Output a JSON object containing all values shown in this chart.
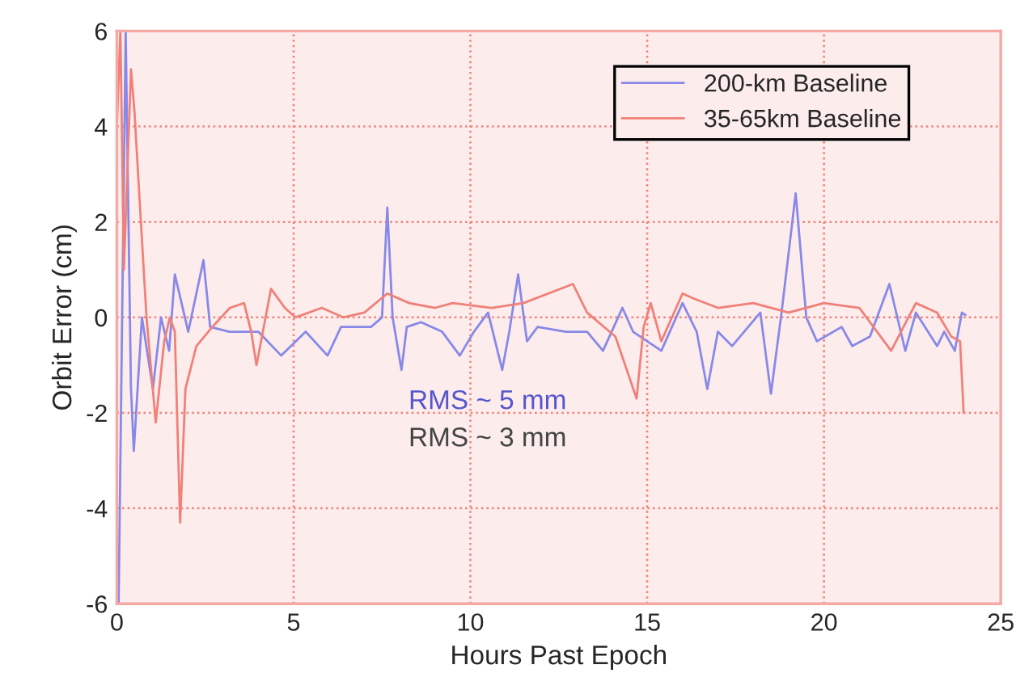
{
  "chart_data": {
    "type": "line",
    "xlabel": "Hours Past Epoch",
    "ylabel": "Orbit Error (cm)",
    "xlim": [
      0,
      25
    ],
    "ylim": [
      -6,
      6
    ],
    "xticks": [
      0,
      5,
      10,
      15,
      20,
      25
    ],
    "yticks": [
      -6,
      -4,
      -2,
      0,
      2,
      4,
      6
    ],
    "grid": true,
    "legend": "top right",
    "line_style": "solid",
    "marker": "none",
    "annotations": [
      "RMS ~ 5 mm",
      "RMS ~ 3 mm"
    ],
    "series": [
      {
        "name": "200-km Baseline",
        "color": "#8888e8",
        "x": [
          0.05,
          0.25,
          0.4,
          0.48,
          0.71,
          1.02,
          1.25,
          1.48,
          1.64,
          2.02,
          2.45,
          2.64,
          3.18,
          4.0,
          4.65,
          5.34,
          5.96,
          6.34,
          7.19,
          7.5,
          7.65,
          7.8,
          8.05,
          8.2,
          8.6,
          9.2,
          9.7,
          10.1,
          10.5,
          10.9,
          11.1,
          11.35,
          11.6,
          11.9,
          12.7,
          13.3,
          13.75,
          14.3,
          14.6,
          15.4,
          16.0,
          16.4,
          16.7,
          17.0,
          17.4,
          18.2,
          18.5,
          18.8,
          19.2,
          19.5,
          19.8,
          20.5,
          20.8,
          21.3,
          21.85,
          22.3,
          22.6,
          23.2,
          23.4,
          23.7,
          23.9,
          24.0
        ],
        "values": [
          -6,
          6,
          -1.5,
          -2.8,
          0,
          -1.5,
          0,
          -0.7,
          0.9,
          -0.3,
          1.2,
          -0.2,
          -0.3,
          -0.3,
          -0.8,
          -0.3,
          -0.8,
          -0.2,
          -0.2,
          0,
          2.3,
          0,
          -1.1,
          -0.2,
          -0.1,
          -0.3,
          -0.8,
          -0.3,
          0.1,
          -1.1,
          -0.3,
          0.9,
          -0.5,
          -0.2,
          -0.3,
          -0.3,
          -0.7,
          0.2,
          -0.3,
          -0.7,
          0.3,
          -0.3,
          -1.5,
          -0.3,
          -0.6,
          0.1,
          -1.6,
          0.1,
          2.6,
          0,
          -0.5,
          -0.2,
          -0.6,
          -0.4,
          0.7,
          -0.7,
          0.1,
          -0.6,
          -0.3,
          -0.7,
          0.1,
          0.05
        ]
      },
      {
        "name": "35-65km Baseline",
        "color": "#f08078",
        "x": [
          0.0,
          0.1,
          0.2,
          0.4,
          0.5,
          0.68,
          0.84,
          1.1,
          1.34,
          1.5,
          1.64,
          1.79,
          1.94,
          2.25,
          2.7,
          3.2,
          3.6,
          3.8,
          3.95,
          4.36,
          4.75,
          5.05,
          5.8,
          6.4,
          7.0,
          7.65,
          8.27,
          9.0,
          9.5,
          10.6,
          11.5,
          12.9,
          13.3,
          14.1,
          14.7,
          14.9,
          15.1,
          15.4,
          16.0,
          16.3,
          17.0,
          18.0,
          19.0,
          20.0,
          21.0,
          21.9,
          22.6,
          23.2,
          23.6,
          23.85,
          23.95
        ],
        "values": [
          4,
          6,
          1,
          5.2,
          4.3,
          2,
          0,
          -2.2,
          -0.5,
          0,
          -0.3,
          -4.3,
          -1.5,
          -0.6,
          -0.2,
          0.2,
          0.3,
          -0.3,
          -1.0,
          0.6,
          0.2,
          0,
          0.2,
          0,
          0.1,
          0.5,
          0.3,
          0.2,
          0.3,
          0.2,
          0.3,
          0.7,
          0.1,
          -0.4,
          -1.7,
          -0.2,
          0.3,
          -0.5,
          0.5,
          0.4,
          0.2,
          0.3,
          0.1,
          0.3,
          0.2,
          -0.7,
          0.3,
          0.1,
          -0.4,
          -0.5,
          -2.0
        ]
      }
    ]
  }
}
